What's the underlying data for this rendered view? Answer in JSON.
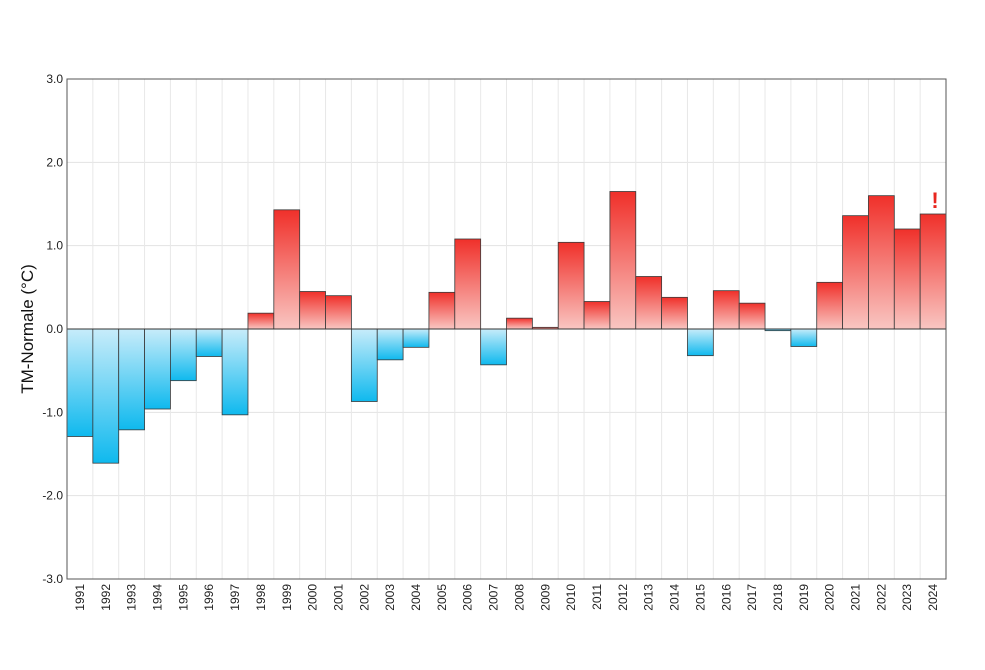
{
  "chart_data": {
    "type": "bar",
    "ylabel": "TM-Normale (°C)",
    "ylim": [
      -3.0,
      3.0
    ],
    "yticks": [
      "-3.0",
      "-2.0",
      "-1.0",
      "0.0",
      "1.0",
      "2.0",
      "3.0"
    ],
    "grid": true,
    "categories": [
      "1991",
      "1992",
      "1993",
      "1994",
      "1995",
      "1996",
      "1997",
      "1998",
      "1999",
      "2000",
      "2001",
      "2002",
      "2003",
      "2004",
      "2005",
      "2006",
      "2007",
      "2008",
      "2009",
      "2010",
      "2011",
      "2012",
      "2013",
      "2014",
      "2015",
      "2016",
      "2017",
      "2018",
      "2019",
      "2020",
      "2021",
      "2022",
      "2023",
      "2024"
    ],
    "values": [
      -1.29,
      -1.61,
      -1.21,
      -0.96,
      -0.62,
      -0.33,
      -1.03,
      0.19,
      1.43,
      0.45,
      0.4,
      -0.87,
      -0.37,
      -0.22,
      0.44,
      1.08,
      -0.43,
      0.13,
      0.02,
      1.04,
      0.33,
      1.65,
      0.63,
      0.38,
      -0.32,
      0.46,
      0.31,
      -0.02,
      -0.21,
      0.56,
      1.36,
      1.6,
      1.2,
      1.38
    ],
    "annotation": {
      "text": "!",
      "category": "2024",
      "color": "#e8261f"
    },
    "colors": {
      "warm_dark": "#f0302a",
      "warm_light": "#f9c6c2",
      "cold_dark": "#0fb9ee",
      "cold_light": "#c7ecfa"
    }
  }
}
